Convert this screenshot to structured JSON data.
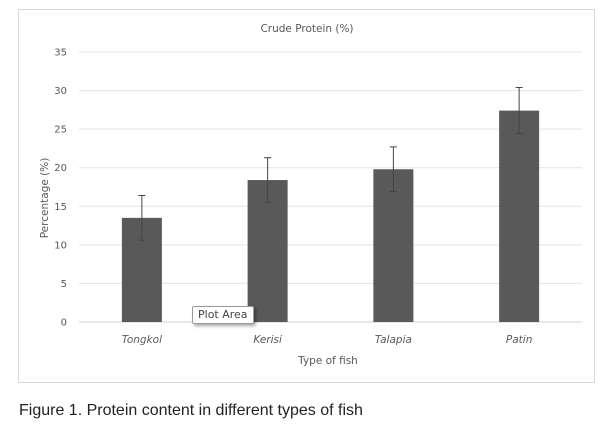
{
  "chart_data": {
    "type": "bar",
    "title": "Crude Protein (%)",
    "xlabel": "Type of fish",
    "ylabel": "Percentage (%)",
    "categories": [
      "Tongkol",
      "Kerisi",
      "Talapia",
      "Patin"
    ],
    "values": [
      13.5,
      18.4,
      19.8,
      27.4
    ],
    "errors": [
      2.9,
      2.9,
      2.9,
      3.0
    ],
    "ylim": [
      0,
      35
    ],
    "yticks": [
      0,
      5,
      10,
      15,
      20,
      25,
      30,
      35
    ],
    "grid": true,
    "legend": "none",
    "bar_color": "#595959"
  },
  "tooltip": {
    "text": "Plot Area"
  },
  "caption": {
    "text": "Figure 1. Protein content in different types of fish"
  }
}
